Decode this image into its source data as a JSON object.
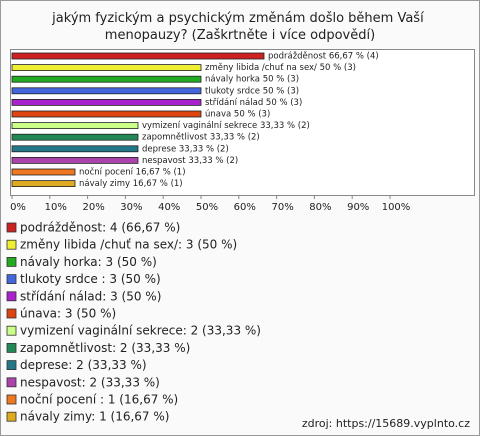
{
  "chart_data": {
    "type": "bar",
    "orientation": "horizontal",
    "title": "jakým fyzickým a psychickým změnám došlo během Vaší menopauzy? (Zaškrtněte i více odpovědí)",
    "categories": [
      "podrážděnost: 4 (66,67 %)",
      "změny libida /chuť na sex/: 3 (50 %)",
      "návaly horka: 3 (50 %)",
      "tlukoty srdce : 3 (50 %)",
      "střídání nálad: 3 (50 %)",
      "únava: 3 (50 %)",
      "vymizení vaginální sekrece: 2 (33,33 %)",
      "zapomnětlivost: 2 (33,33 %)",
      "deprese: 2 (33,33 %)",
      "nespavost: 2 (33,33 %)",
      "noční pocení : 1 (16,67 %)",
      "návaly zimy: 1 (16,67 %)"
    ],
    "values": [
      66.67,
      50,
      50,
      50,
      50,
      50,
      33.33,
      33.33,
      33.33,
      33.33,
      16.67,
      16.67
    ],
    "value_labels": [
      "podrážděnost 66,67 % (4)",
      "změny libida /chuť na sex/  50 % (3)",
      "návaly horka 50 % (3)",
      "tlukoty srdce  50 % (3)",
      "střídání nálad 50 % (3)",
      "únava 50 % (3)",
      "vymizení vaginální sekrece 33,33 % (2)",
      "zapomnětlivost 33,33 % (2)",
      "deprese 33,33 % (2)",
      "nespavost 33,33 % (2)",
      "noční pocení  16,67 % (1)",
      "návaly zimy 16,67 % (1)"
    ],
    "colors": [
      "#cc2222",
      "#eeee33",
      "#22aa22",
      "#4466dd",
      "#aa22cc",
      "#dd4411",
      "#ccff88",
      "#228855",
      "#227788",
      "#aa44aa",
      "#ee7722",
      "#ddaa22"
    ],
    "xlim": [
      0,
      100
    ],
    "xticks": [
      {
        "value": 0,
        "label": "0%"
      },
      {
        "value": 10,
        "label": "10%"
      },
      {
        "value": 20,
        "label": "20%"
      },
      {
        "value": 30,
        "label": "30%"
      },
      {
        "value": 40,
        "label": "40%"
      },
      {
        "value": 50,
        "label": "50%"
      },
      {
        "value": 60,
        "label": "60%"
      },
      {
        "value": 70,
        "label": "70%"
      },
      {
        "value": 80,
        "label": "80%"
      },
      {
        "value": 90,
        "label": "90%"
      },
      {
        "value": 100,
        "label": "100%"
      }
    ],
    "source": "zdroj: https://15689.vyplnto.cz"
  }
}
